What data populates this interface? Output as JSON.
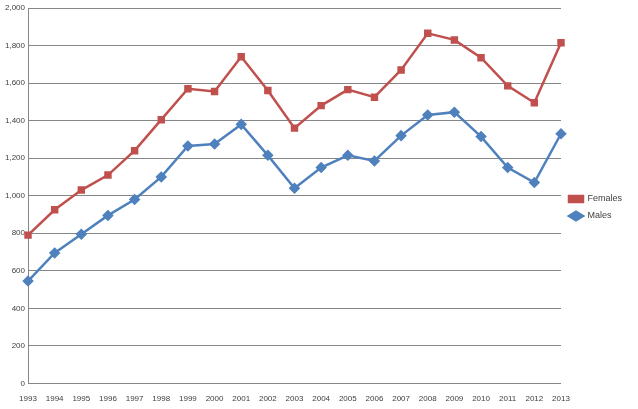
{
  "chart_data": {
    "type": "line",
    "categories": [
      "1993",
      "1994",
      "1995",
      "1996",
      "1997",
      "1998",
      "1999",
      "2000",
      "2001",
      "2002",
      "2003",
      "2004",
      "2005",
      "2006",
      "2007",
      "2008",
      "2009",
      "2010",
      "2011",
      "2012",
      "2013"
    ],
    "series": [
      {
        "name": "Females",
        "color": "#c0504d",
        "marker": "square",
        "values": [
          790,
          925,
          1030,
          1110,
          1240,
          1405,
          1570,
          1555,
          1740,
          1560,
          1360,
          1480,
          1565,
          1525,
          1670,
          1865,
          1830,
          1735,
          1585,
          1495,
          1815
        ]
      },
      {
        "name": "Males",
        "color": "#4f81bd",
        "marker": "diamond",
        "values": [
          545,
          695,
          795,
          895,
          980,
          1100,
          1265,
          1275,
          1380,
          1215,
          1040,
          1150,
          1215,
          1185,
          1320,
          1430,
          1445,
          1315,
          1150,
          1070,
          1330
        ]
      }
    ],
    "ylim": [
      0,
      2000
    ],
    "yticks": [
      0,
      200,
      400,
      600,
      800,
      {
        "value": 1000,
        "label": "1,000"
      },
      {
        "value": 1200,
        "label": "1,200"
      },
      {
        "value": 1400,
        "label": "1,400"
      },
      {
        "value": 1600,
        "label": "1,600"
      },
      {
        "value": 1800,
        "label": "1,800"
      },
      {
        "value": 2000,
        "label": "2,000"
      }
    ],
    "grid": true,
    "legend": "right"
  }
}
